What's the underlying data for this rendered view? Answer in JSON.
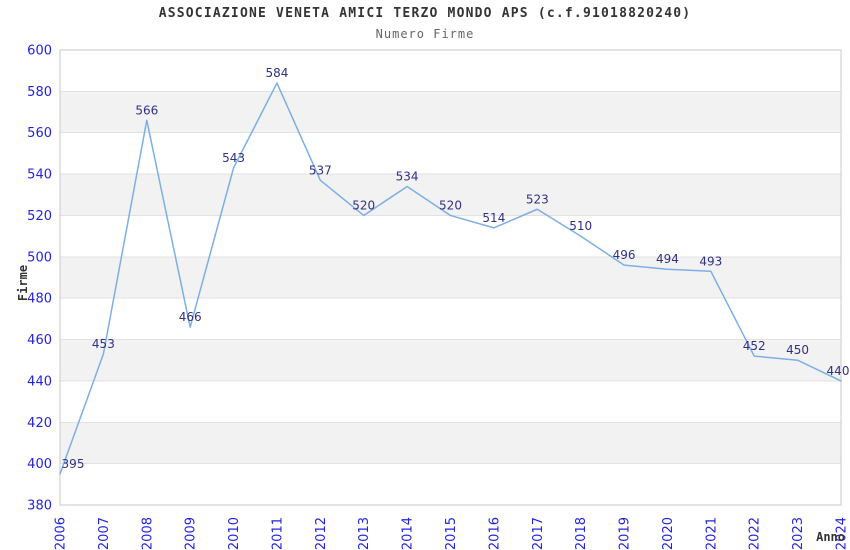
{
  "header": {
    "title": "ASSOCIAZIONE VENETA AMICI TERZO MONDO APS (c.f.91018820240)",
    "subtitle": "Numero Firme"
  },
  "chart_data": {
    "type": "line",
    "title": "ASSOCIAZIONE VENETA AMICI TERZO MONDO APS (c.f.91018820240)",
    "subtitle": "Numero Firme",
    "xlabel": "Anno",
    "ylabel": "Firme",
    "categories": [
      "2006",
      "2007",
      "2008",
      "2009",
      "2010",
      "2011",
      "2012",
      "2013",
      "2014",
      "2015",
      "2016",
      "2017",
      "2018",
      "2019",
      "2020",
      "2021",
      "2022",
      "2023",
      "2024"
    ],
    "series": [
      {
        "name": "Numero Firme",
        "values": [
          395,
          453,
          566,
          466,
          543,
          584,
          537,
          520,
          534,
          520,
          514,
          523,
          510,
          496,
          494,
          493,
          452,
          450,
          440
        ]
      }
    ],
    "data_labels_shown": true,
    "ylim": [
      380,
      600
    ],
    "ytick_step": 20,
    "grid": "horizontal",
    "alternating_bands": true,
    "legend_position": "none",
    "colors": {
      "line": "#7cafe4",
      "data_label": "#303085",
      "tick_label": "#2323df",
      "band": "#f2f2f2",
      "gridline": "#e2e2e2",
      "plot_border": "#c9c9c9",
      "title": "#333333",
      "subtitle": "#666666",
      "axis_title": "#333333",
      "background": "#ffffff"
    }
  }
}
